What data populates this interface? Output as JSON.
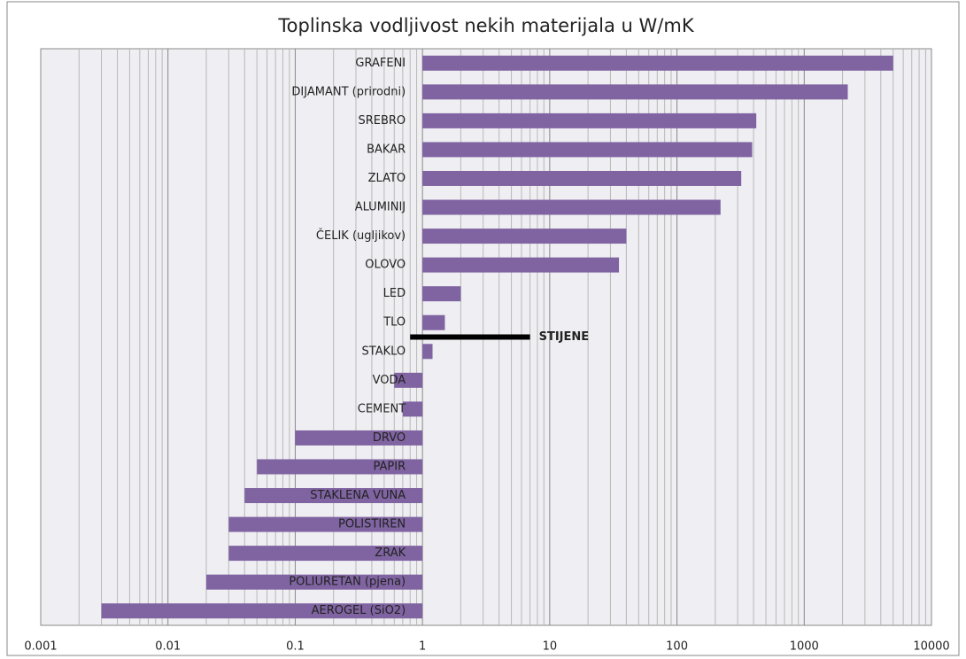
{
  "chart_data": {
    "type": "bar",
    "orientation": "horizontal",
    "title": "Toplinska vodljivost nekih materijala u W/mK",
    "categories": [
      "GRAFENI",
      "DIJAMANT (prirodni)",
      "SREBRO",
      "BAKAR",
      "ZLATO",
      "ALUMINIJ",
      "ČELIK (ugljikov)",
      "OLOVO",
      "LED",
      "TLO",
      "STAKLO",
      "VODA",
      "CEMENT",
      "DRVO",
      "PAPIR",
      "STAKLENA VUNA",
      "POLISTIREN",
      "ZRAK",
      "POLIURETAN (pjena)",
      "AEROGEL (SiO2)"
    ],
    "values": [
      5000,
      2200,
      420,
      390,
      320,
      220,
      40,
      35,
      2,
      1.5,
      1.2,
      0.6,
      0.7,
      0.1,
      0.05,
      0.04,
      0.03,
      0.03,
      0.02,
      0.003
    ],
    "color": "#8064a2",
    "xscale": "log",
    "xlim": [
      0.001,
      10000
    ],
    "xticks": [
      0.001,
      0.01,
      0.1,
      1,
      10,
      100,
      1000,
      10000
    ],
    "bar_base": 1,
    "grid": true,
    "annotation": {
      "text": "STIJENE",
      "range": [
        0.8,
        7
      ]
    }
  }
}
